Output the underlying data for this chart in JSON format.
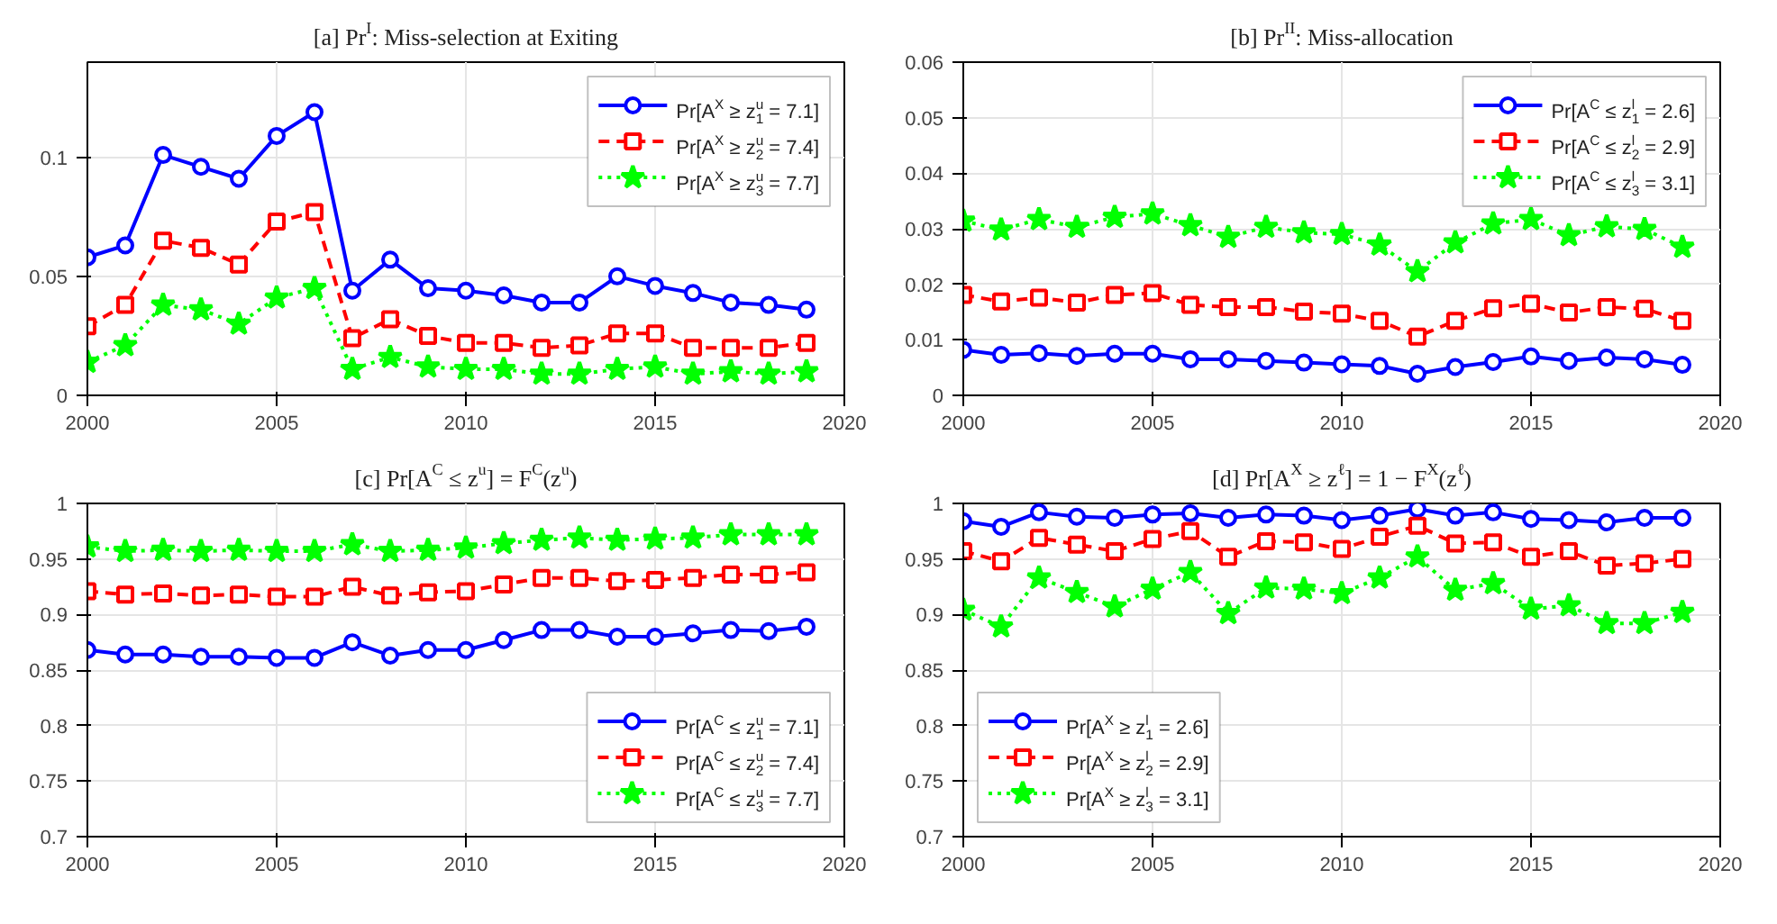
{
  "chart_data": [
    {
      "type": "line",
      "title": "[a] Pr$^{I}$: Miss-selection at Exiting",
      "x": [
        2000,
        2001,
        2002,
        2003,
        2004,
        2005,
        2006,
        2007,
        2008,
        2009,
        2010,
        2011,
        2012,
        2013,
        2014,
        2015,
        2016,
        2017,
        2018,
        2019
      ],
      "xlim": [
        2000,
        2020
      ],
      "xticks": [
        2000,
        2005,
        2010,
        2015,
        2020
      ],
      "ylim": [
        0,
        0.14
      ],
      "yticks": [
        0,
        0.05,
        0.1
      ],
      "grid": true,
      "legend": "top right",
      "series": [
        {
          "name": "Pr[A$^{X}$ ≥ z$^{u}$$_{1}$ = 7.1]",
          "color": "#0000ff",
          "marker": "circle",
          "line_style": "solid",
          "values": [
            0.058,
            0.063,
            0.101,
            0.096,
            0.091,
            0.109,
            0.119,
            0.044,
            0.057,
            0.045,
            0.044,
            0.042,
            0.039,
            0.039,
            0.05,
            0.046,
            0.043,
            0.039,
            0.038,
            0.036
          ]
        },
        {
          "name": "Pr[A$^{X}$ ≥ z$^{u}$$_{2}$ = 7.4]",
          "color": "#ff0000",
          "marker": "square",
          "line_style": "dashed",
          "values": [
            0.029,
            0.038,
            0.065,
            0.062,
            0.055,
            0.073,
            0.077,
            0.024,
            0.032,
            0.025,
            0.022,
            0.022,
            0.02,
            0.021,
            0.026,
            0.026,
            0.02,
            0.02,
            0.02,
            0.022
          ]
        },
        {
          "name": "Pr[A$^{X}$ ≥ z$^{u}$$_{3}$ = 7.7]",
          "color": "#00ff00",
          "marker": "star",
          "line_style": "dotted",
          "values": [
            0.014,
            0.021,
            0.038,
            0.036,
            0.03,
            0.041,
            0.045,
            0.011,
            0.016,
            0.012,
            0.011,
            0.011,
            0.009,
            0.009,
            0.011,
            0.012,
            0.009,
            0.01,
            0.009,
            0.01
          ]
        }
      ]
    },
    {
      "type": "line",
      "title": "[b] Pr$^{II}$: Miss-allocation",
      "x": [
        2000,
        2001,
        2002,
        2003,
        2004,
        2005,
        2006,
        2007,
        2008,
        2009,
        2010,
        2011,
        2012,
        2013,
        2014,
        2015,
        2016,
        2017,
        2018,
        2019
      ],
      "xlim": [
        2000,
        2020
      ],
      "xticks": [
        2000,
        2005,
        2010,
        2015,
        2020
      ],
      "ylim": [
        0,
        0.06
      ],
      "yticks": [
        0,
        0.01,
        0.02,
        0.03,
        0.04,
        0.05,
        0.06
      ],
      "grid": true,
      "legend": "top right",
      "series": [
        {
          "name": "Pr[A$^{C}$ ≤ z$^{l}$$_{1}$ = 2.6]",
          "color": "#0000ff",
          "marker": "circle",
          "line_style": "solid",
          "values": [
            0.0082,
            0.0073,
            0.0076,
            0.0071,
            0.0075,
            0.0075,
            0.0065,
            0.0065,
            0.0062,
            0.0059,
            0.0056,
            0.0053,
            0.0039,
            0.0051,
            0.006,
            0.007,
            0.0062,
            0.0068,
            0.0065,
            0.0055
          ]
        },
        {
          "name": "Pr[A$^{C}$ ≤ z$^{l}$$_{2}$ = 2.9]",
          "color": "#ff0000",
          "marker": "square",
          "line_style": "dashed",
          "values": [
            0.0181,
            0.0169,
            0.0176,
            0.0167,
            0.0181,
            0.0184,
            0.0163,
            0.0159,
            0.0159,
            0.0151,
            0.0147,
            0.0134,
            0.0106,
            0.0134,
            0.0157,
            0.0165,
            0.0149,
            0.0159,
            0.0156,
            0.0134
          ]
        },
        {
          "name": "Pr[A$^{C}$ ≤ z$^{l}$$_{3}$ = 3.1]",
          "color": "#00ff00",
          "marker": "star",
          "line_style": "dotted",
          "values": [
            0.0314,
            0.0298,
            0.0317,
            0.0303,
            0.0321,
            0.0327,
            0.0306,
            0.0285,
            0.0303,
            0.0293,
            0.029,
            0.0271,
            0.0223,
            0.0275,
            0.0309,
            0.0317,
            0.0288,
            0.0304,
            0.0299,
            0.0267
          ]
        }
      ]
    },
    {
      "type": "line",
      "title": "[c] Pr[A$^{C}$ ≤ z$^{u}$] = F$^{C}$(z$^{u}$)",
      "x": [
        2000,
        2001,
        2002,
        2003,
        2004,
        2005,
        2006,
        2007,
        2008,
        2009,
        2010,
        2011,
        2012,
        2013,
        2014,
        2015,
        2016,
        2017,
        2018,
        2019
      ],
      "xlim": [
        2000,
        2020
      ],
      "xticks": [
        2000,
        2005,
        2010,
        2015,
        2020
      ],
      "ylim": [
        0.7,
        1
      ],
      "yticks": [
        0.7,
        0.75,
        0.8,
        0.85,
        0.9,
        0.95,
        1
      ],
      "grid": true,
      "legend": "bottom right",
      "series": [
        {
          "name": "Pr[A$^{C}$ ≤ z$^{u}$$_{1}$ = 7.1]",
          "color": "#0000ff",
          "marker": "circle",
          "line_style": "solid",
          "values": [
            0.868,
            0.864,
            0.864,
            0.862,
            0.862,
            0.861,
            0.861,
            0.875,
            0.863,
            0.868,
            0.868,
            0.877,
            0.886,
            0.886,
            0.88,
            0.88,
            0.883,
            0.886,
            0.885,
            0.889
          ]
        },
        {
          "name": "Pr[A$^{C}$ ≤ z$^{u}$$_{2}$ = 7.4]",
          "color": "#ff0000",
          "marker": "square",
          "line_style": "dashed",
          "values": [
            0.921,
            0.918,
            0.919,
            0.917,
            0.918,
            0.916,
            0.916,
            0.925,
            0.917,
            0.92,
            0.921,
            0.927,
            0.933,
            0.933,
            0.93,
            0.931,
            0.933,
            0.936,
            0.936,
            0.938
          ]
        },
        {
          "name": "Pr[A$^{C}$ ≤ z$^{u}$$_{3}$ = 7.7]",
          "color": "#00ff00",
          "marker": "star",
          "line_style": "dotted",
          "values": [
            0.961,
            0.957,
            0.958,
            0.957,
            0.958,
            0.957,
            0.957,
            0.963,
            0.957,
            0.958,
            0.96,
            0.964,
            0.967,
            0.969,
            0.967,
            0.968,
            0.969,
            0.972,
            0.972,
            0.972
          ]
        }
      ]
    },
    {
      "type": "line",
      "title": "[d] Pr[A$^{X}$ ≥ z$^{ℓ}$] = 1 − F$^{X}$(z$^{ℓ}$)",
      "x": [
        2000,
        2001,
        2002,
        2003,
        2004,
        2005,
        2006,
        2007,
        2008,
        2009,
        2010,
        2011,
        2012,
        2013,
        2014,
        2015,
        2016,
        2017,
        2018,
        2019
      ],
      "xlim": [
        2000,
        2020
      ],
      "xticks": [
        2000,
        2005,
        2010,
        2015,
        2020
      ],
      "ylim": [
        0.7,
        1
      ],
      "yticks": [
        0.7,
        0.75,
        0.8,
        0.85,
        0.9,
        0.95,
        1
      ],
      "grid": true,
      "legend": "bottom left",
      "series": [
        {
          "name": "Pr[A$^{X}$ ≥ z$^{l}$$_{1}$ = 2.6]",
          "color": "#0000ff",
          "marker": "circle",
          "line_style": "solid",
          "values": [
            0.984,
            0.979,
            0.992,
            0.988,
            0.987,
            0.99,
            0.991,
            0.987,
            0.99,
            0.989,
            0.985,
            0.989,
            0.995,
            0.989,
            0.992,
            0.986,
            0.985,
            0.983,
            0.987,
            0.987
          ]
        },
        {
          "name": "Pr[A$^{X}$ ≥ z$^{l}$$_{2}$ = 2.9]",
          "color": "#ff0000",
          "marker": "square",
          "line_style": "dashed",
          "values": [
            0.957,
            0.948,
            0.969,
            0.963,
            0.957,
            0.968,
            0.975,
            0.952,
            0.966,
            0.965,
            0.959,
            0.97,
            0.98,
            0.964,
            0.965,
            0.952,
            0.957,
            0.944,
            0.946,
            0.95
          ]
        },
        {
          "name": "Pr[A$^{X}$ ≥ z$^{l}$$_{3}$ = 3.1]",
          "color": "#00ff00",
          "marker": "star",
          "line_style": "dotted",
          "values": [
            0.904,
            0.889,
            0.933,
            0.92,
            0.907,
            0.923,
            0.938,
            0.901,
            0.924,
            0.923,
            0.919,
            0.933,
            0.952,
            0.922,
            0.928,
            0.905,
            0.908,
            0.892,
            0.892,
            0.902
          ]
        }
      ]
    }
  ]
}
